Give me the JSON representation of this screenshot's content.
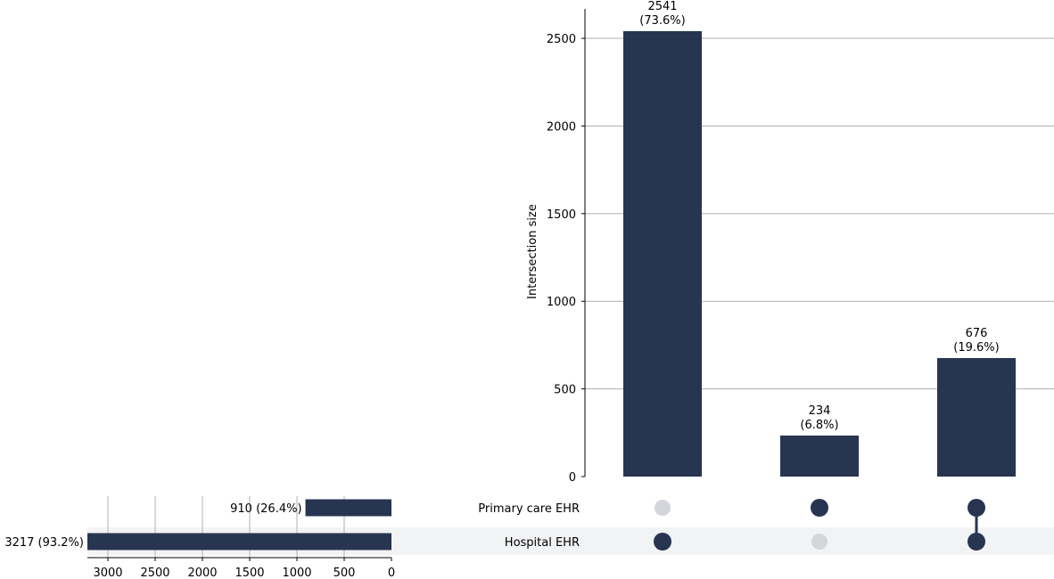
{
  "chart_data": {
    "type": "upset",
    "sets": [
      {
        "name": "Primary care EHR",
        "size": 910,
        "label": "910 (26.4%)"
      },
      {
        "name": "Hospital EHR",
        "size": 3217,
        "label": "3217 (93.2%)"
      }
    ],
    "intersections": [
      {
        "members": [
          false,
          true
        ],
        "value": 2541,
        "label_count": "2541",
        "label_pct": "(73.6%)"
      },
      {
        "members": [
          true,
          false
        ],
        "value": 234,
        "label_count": "234",
        "label_pct": "(6.8%)"
      },
      {
        "members": [
          true,
          true
        ],
        "value": 676,
        "label_count": "676",
        "label_pct": "(19.6%)"
      }
    ],
    "ylabel": "Intersection size",
    "y_ticks": [
      0,
      500,
      1000,
      1500,
      2000,
      2500
    ],
    "ylim": [
      0,
      2668
    ],
    "set_size_ticks": [
      3000,
      2500,
      2000,
      1500,
      1000,
      500,
      0
    ],
    "set_size_xlim": [
      3217,
      0
    ],
    "grid": true
  },
  "colors": {
    "bar": "#273551",
    "dot_active": "#273551",
    "dot_inactive": "#d3d6da",
    "row_shade": "#f2f3f5",
    "grid": "#b0b0b0"
  }
}
